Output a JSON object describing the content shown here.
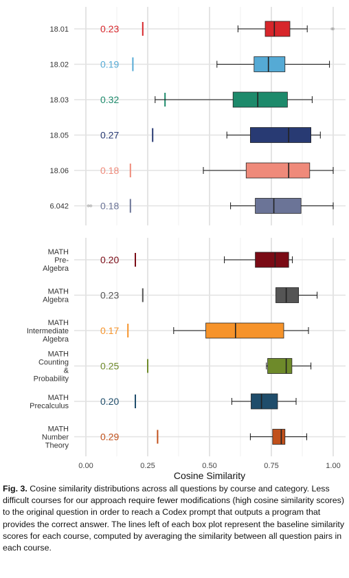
{
  "chart_data": {
    "type": "boxplot",
    "xlabel": "Cosine Similarity",
    "xlim": [
      0,
      1
    ],
    "xticks": [
      "0.00",
      "0.25",
      "0.50",
      "0.75",
      "1.00"
    ],
    "xtick_values": [
      0,
      0.25,
      0.5,
      0.75,
      1.0
    ],
    "grid": true,
    "panels": [
      {
        "rows": [
          {
            "label": [
              "18.01"
            ],
            "baseline": 0.23,
            "baseline_label": "0.23",
            "color": "#d7262b",
            "whisker": [
              0.615,
              0.895
            ],
            "q1": 0.725,
            "median": 0.762,
            "q3": 0.825,
            "outliers": [
              0.995,
              1.0
            ]
          },
          {
            "label": [
              "18.02"
            ],
            "baseline": 0.19,
            "baseline_label": "0.19",
            "color": "#55aad5",
            "whisker": [
              0.53,
              0.985
            ],
            "q1": 0.68,
            "median": 0.738,
            "q3": 0.805
          },
          {
            "label": [
              "18.03"
            ],
            "baseline": 0.32,
            "baseline_label": "0.32",
            "color": "#1d8a6b",
            "whisker": [
              0.28,
              0.915
            ],
            "q1": 0.595,
            "median": 0.695,
            "q3": 0.815
          },
          {
            "label": [
              "18.05"
            ],
            "baseline": 0.27,
            "baseline_label": "0.27",
            "color": "#283a73",
            "whisker": [
              0.57,
              0.948
            ],
            "q1": 0.665,
            "median": 0.82,
            "q3": 0.91
          },
          {
            "label": [
              "18.06"
            ],
            "baseline": 0.18,
            "baseline_label": "0.18",
            "color": "#ef8a7a",
            "whisker": [
              0.475,
              1.0
            ],
            "q1": 0.648,
            "median": 0.82,
            "q3": 0.905
          },
          {
            "label": [
              "6.042"
            ],
            "baseline": 0.18,
            "baseline_label": "0.18",
            "color": "#6b7497",
            "whisker": [
              0.585,
              1.0
            ],
            "q1": 0.685,
            "median": 0.76,
            "q3": 0.87,
            "outliers": [
              0.01,
              0.02
            ]
          }
        ]
      },
      {
        "rows": [
          {
            "label": [
              "MATH",
              "Pre-",
              "Algebra"
            ],
            "baseline": 0.2,
            "baseline_label": "0.20",
            "color": "#7a0b15",
            "whisker": [
              0.56,
              0.835
            ],
            "q1": 0.685,
            "median": 0.765,
            "q3": 0.82
          },
          {
            "label": [
              "MATH",
              "Algebra"
            ],
            "baseline": 0.23,
            "baseline_label": "0.23",
            "color": "#555555",
            "whisker": [
              0.77,
              0.935
            ],
            "q1": 0.768,
            "median": 0.81,
            "q3": 0.86
          },
          {
            "label": [
              "MATH",
              "Intermediate",
              "Algebra"
            ],
            "baseline": 0.17,
            "baseline_label": "0.17",
            "color": "#f6932a",
            "whisker": [
              0.355,
              0.9
            ],
            "q1": 0.485,
            "median": 0.605,
            "q3": 0.8
          },
          {
            "label": [
              "MATH",
              "Counting",
              "&",
              "Probability"
            ],
            "baseline": 0.25,
            "baseline_label": "0.25",
            "color": "#6e8a2a",
            "whisker": [
              0.73,
              0.91
            ],
            "q1": 0.735,
            "median": 0.81,
            "q3": 0.833
          },
          {
            "label": [
              "MATH",
              "Precalculus"
            ],
            "baseline": 0.2,
            "baseline_label": "0.20",
            "color": "#1f4d6b",
            "whisker": [
              0.59,
              0.85
            ],
            "q1": 0.668,
            "median": 0.71,
            "q3": 0.775
          },
          {
            "label": [
              "MATH",
              "Number",
              "Theory"
            ],
            "baseline": 0.29,
            "baseline_label": "0.29",
            "color": "#c1501b",
            "whisker": [
              0.665,
              0.893
            ],
            "q1": 0.755,
            "median": 0.79,
            "q3": 0.805
          }
        ]
      }
    ]
  },
  "caption": {
    "fig_label": "Fig. 3.",
    "text": "Cosine similarity distributions across all questions by course and category. Less difficult courses for our approach require fewer modifications (high cosine similarity scores) to the original question in order to reach a Codex prompt that outputs a program that provides the correct answer. The lines left of each box plot represent the baseline similarity scores for each course, computed by averaging the similarity between all question pairs in each course."
  }
}
